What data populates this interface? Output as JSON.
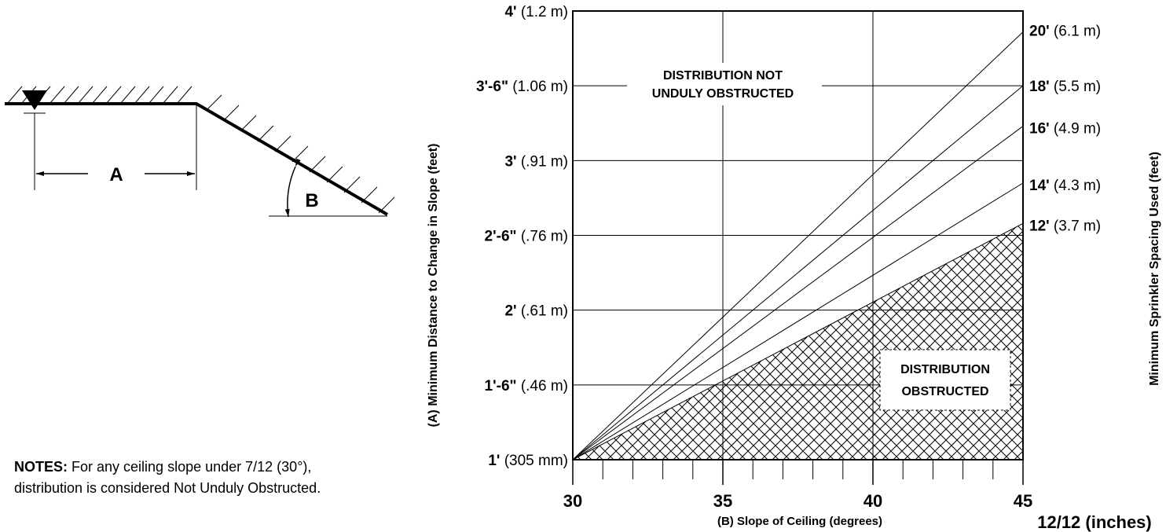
{
  "chart_data": {
    "type": "line",
    "xlabel": "(B) Slope of Ceiling (degrees)",
    "ylabel": "(A) Minimum Distance to Change in Slope (feet)",
    "y2label": "Minimum Sprinkler Spacing Used (feet)",
    "x_extra_label": "12/12 (inches)",
    "xlim": [
      30,
      45
    ],
    "ylim": [
      1,
      4
    ],
    "x_major_ticks": [
      30,
      35,
      40,
      45
    ],
    "x_minor_ticks": [
      31,
      32,
      33,
      34,
      36,
      37,
      38,
      39,
      41,
      42,
      43,
      44
    ],
    "y_ticks": [
      {
        "value": 1.0,
        "bold": "1'",
        "rest": " (305 mm)"
      },
      {
        "value": 1.5,
        "bold": "1'-6\"",
        "rest": " (.46 m)"
      },
      {
        "value": 2.0,
        "bold": "2'",
        "rest": " (.61 m)"
      },
      {
        "value": 2.5,
        "bold": "2'-6\"",
        "rest": " (.76 m)"
      },
      {
        "value": 3.0,
        "bold": "3'",
        "rest": " (.91 m)"
      },
      {
        "value": 3.5,
        "bold": "3'-6\"",
        "rest": " (1.06 m)"
      },
      {
        "value": 4.0,
        "bold": "4'",
        "rest": " (1.2 m)"
      }
    ],
    "series": [
      {
        "name_bold": "12'",
        "name_rest": " (3.7 m)",
        "x": [
          30,
          45
        ],
        "y": [
          1.0,
          2.58
        ]
      },
      {
        "name_bold": "14'",
        "name_rest": " (4.3 m)",
        "x": [
          30,
          45
        ],
        "y": [
          1.0,
          2.85
        ]
      },
      {
        "name_bold": "16'",
        "name_rest": " (4.9 m)",
        "x": [
          30,
          45
        ],
        "y": [
          1.0,
          3.23
        ]
      },
      {
        "name_bold": "18'",
        "name_rest": " (5.5 m)",
        "x": [
          30,
          45
        ],
        "y": [
          1.0,
          3.5
        ]
      },
      {
        "name_bold": "20'",
        "name_rest": " (6.1 m)",
        "x": [
          30,
          45
        ],
        "y": [
          1.0,
          3.86
        ]
      }
    ],
    "regions": {
      "not_obstructed": [
        "DISTRIBUTION NOT",
        "UNDULY OBSTRUCTED"
      ],
      "obstructed": [
        "DISTRIBUTION",
        "OBSTRUCTED"
      ]
    }
  },
  "diagram": {
    "label_a": "A",
    "label_b": "B"
  },
  "notes": {
    "title": "NOTES:",
    "line1": " For any ceiling slope under 7/12 (30°),",
    "line2": "distribution is considered Not Unduly Obstructed."
  }
}
